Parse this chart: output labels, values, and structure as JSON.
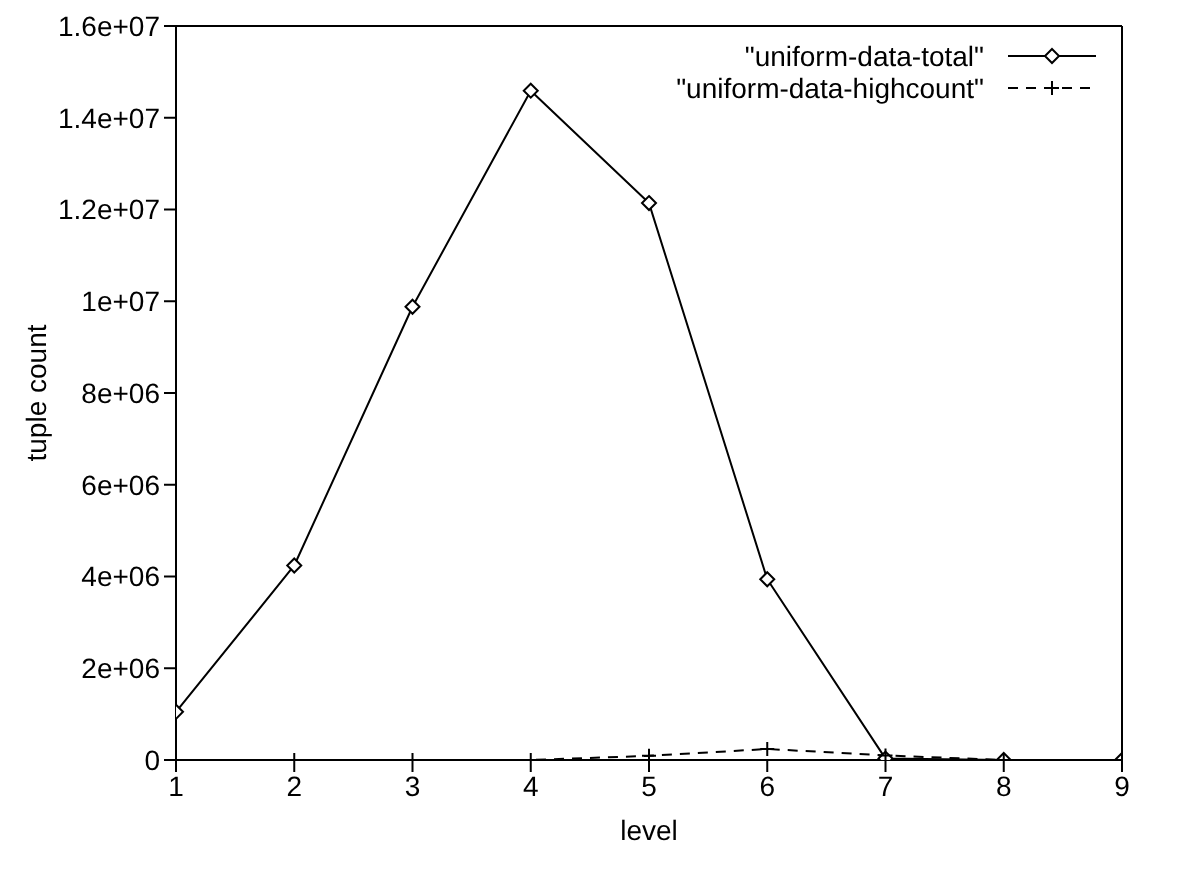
{
  "chart_data": {
    "type": "line",
    "xlabel": "level",
    "ylabel": "tuple count",
    "x": [
      1,
      2,
      3,
      4,
      5,
      6,
      7,
      8,
      9
    ],
    "series": [
      {
        "name": "\"uniform-data-total\"",
        "color": "#000000",
        "marker": "diamond",
        "line_style": "solid",
        "values": [
          1050000,
          4240000,
          9880000,
          14590000,
          12140000,
          3940000,
          30000,
          0,
          0
        ]
      },
      {
        "name": "\"uniform-data-highcount\"",
        "color": "#000000",
        "marker": "cross",
        "line_style": "dashed",
        "values": [
          0,
          0,
          0,
          0,
          90000,
          240000,
          100000,
          0,
          0
        ]
      }
    ],
    "xlim": [
      1,
      9
    ],
    "xticks": [
      1,
      2,
      3,
      4,
      5,
      6,
      7,
      8,
      9
    ],
    "ylim": [
      0,
      16000000
    ],
    "yticks": [
      0,
      {
        "value": 2000000,
        "label": "2e+06"
      },
      {
        "value": 4000000,
        "label": "4e+06"
      },
      {
        "value": 6000000,
        "label": "6e+06"
      },
      {
        "value": 8000000,
        "label": "8e+06"
      },
      {
        "value": 10000000,
        "label": "1e+07"
      },
      {
        "value": 12000000,
        "label": "1.2e+07"
      },
      {
        "value": 14000000,
        "label": "1.4e+07"
      },
      {
        "value": 16000000,
        "label": "1.6e+07"
      }
    ],
    "grid": false,
    "legend": "top right"
  }
}
